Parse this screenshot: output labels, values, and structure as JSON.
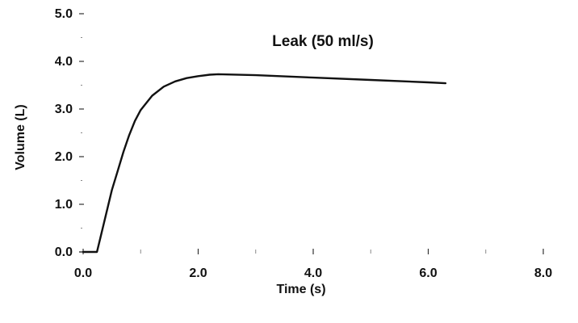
{
  "chart_data": {
    "type": "line",
    "title": "Leak (50 ml/s)",
    "xlabel": "Time (s)",
    "ylabel": "Volume (L)",
    "xlim": [
      0,
      8
    ],
    "ylim": [
      0,
      5
    ],
    "x_ticks": [
      0,
      2,
      4,
      6,
      8
    ],
    "x_tick_labels": [
      "0.0",
      "2.0",
      "4.0",
      "6.0",
      "8.0"
    ],
    "y_ticks": [
      0,
      1,
      2,
      3,
      4,
      5
    ],
    "y_tick_labels": [
      "0.0",
      "1.0",
      "2.0",
      "3.0",
      "4.0",
      "5.0"
    ],
    "grid": false,
    "legend": "none",
    "series": [
      {
        "x": [
          0.0,
          0.24,
          0.3,
          0.4,
          0.5,
          0.6,
          0.7,
          0.8,
          0.9,
          1.0,
          1.2,
          1.4,
          1.6,
          1.8,
          2.0,
          2.2,
          2.35,
          3.0,
          4.0,
          5.0,
          6.0,
          6.3
        ],
        "y": [
          0.0,
          0.0,
          0.3,
          0.8,
          1.3,
          1.7,
          2.1,
          2.45,
          2.75,
          2.98,
          3.28,
          3.47,
          3.58,
          3.65,
          3.69,
          3.72,
          3.73,
          3.71,
          3.66,
          3.61,
          3.56,
          3.54
        ]
      }
    ]
  }
}
